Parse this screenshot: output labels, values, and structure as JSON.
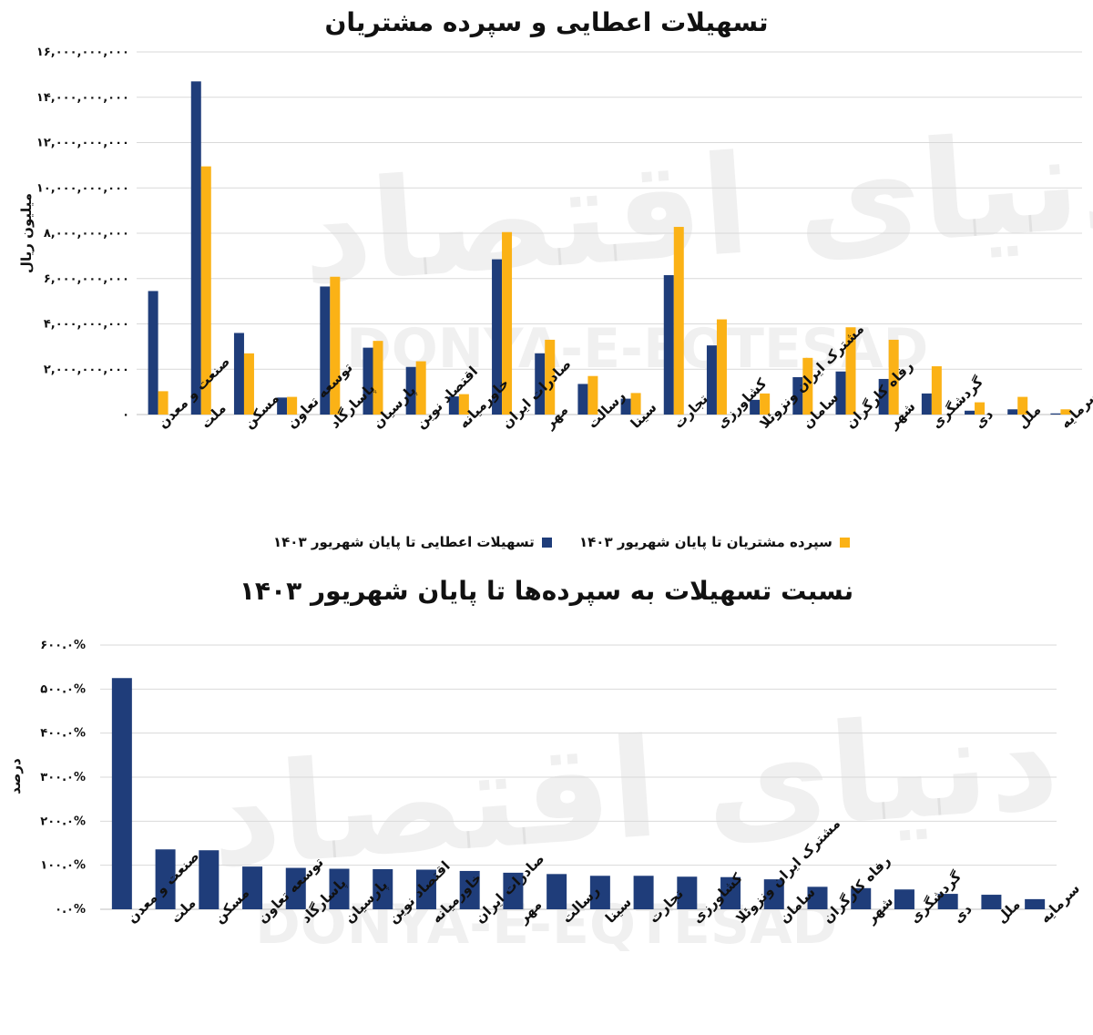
{
  "colors": {
    "blue": "#1f3d7a",
    "orange": "#fbb216",
    "grid": "#d9d9d9",
    "axis": "#111111"
  },
  "watermark": {
    "text_latin": "DONYA-E-EQTESAD",
    "text_fa": "دنیای اقتصاد"
  },
  "chart_data": [
    {
      "type": "bar",
      "title": "تسهیلات اعطایی و سپرده مشتریان",
      "ylabel": "میلیون ریال",
      "ylim": [
        0,
        16000000000
      ],
      "yticks": [
        0,
        2000000000,
        4000000000,
        6000000000,
        8000000000,
        10000000000,
        12000000000,
        14000000000,
        16000000000
      ],
      "ytick_labels": [
        "۰",
        "۲,۰۰۰,۰۰۰,۰۰۰",
        "۴,۰۰۰,۰۰۰,۰۰۰",
        "۶,۰۰۰,۰۰۰,۰۰۰",
        "۸,۰۰۰,۰۰۰,۰۰۰",
        "۱۰,۰۰۰,۰۰۰,۰۰۰",
        "۱۲,۰۰۰,۰۰۰,۰۰۰",
        "۱۴,۰۰۰,۰۰۰,۰۰۰",
        "۱۶,۰۰۰,۰۰۰,۰۰۰"
      ],
      "grid": true,
      "legend_position": "bottom",
      "categories": [
        "صنعت و معدن",
        "ملت",
        "مسکن",
        "توسعه تعاون",
        "پاسارگاد",
        "پارسیان",
        "اقتصاد نوین",
        "خاورمیانه",
        "صادرات ایران",
        "مهر",
        "رسالت",
        "سینا",
        "تجارت",
        "کشاورزی",
        "مشترک ایران ونزوئلا",
        "سامان",
        "رفاه کارگران",
        "شهر",
        "گردشگری",
        "دی",
        "ملل",
        "سرمایه"
      ],
      "series": [
        {
          "name": "تسهیلات اعطایی تا پایان شهریور ۱۴۰۳",
          "color": "#1f3d7a",
          "values": [
            5450000000,
            14700000000,
            3600000000,
            750000000,
            5650000000,
            2950000000,
            2100000000,
            800000000,
            6850000000,
            2700000000,
            1350000000,
            700000000,
            6150000000,
            3050000000,
            650000000,
            1650000000,
            1900000000,
            1570000000,
            930000000,
            170000000,
            230000000,
            50000000
          ]
        },
        {
          "name": "سپرده مشتریان تا پایان شهریور ۱۴۰۳",
          "color": "#fbb216",
          "values": [
            1030000000,
            10950000000,
            2700000000,
            780000000,
            6080000000,
            3250000000,
            2350000000,
            900000000,
            8050000000,
            3300000000,
            1700000000,
            950000000,
            8280000000,
            4200000000,
            930000000,
            2500000000,
            3850000000,
            3300000000,
            2130000000,
            540000000,
            780000000,
            230000000
          ]
        }
      ]
    },
    {
      "type": "bar",
      "title": "نسبت تسهیلات به سپرده‌ها تا پایان شهریور ۱۴۰۳",
      "ylabel": "درصد",
      "ylim": [
        0,
        600
      ],
      "yticks": [
        0,
        100,
        200,
        300,
        400,
        500,
        600
      ],
      "ytick_labels": [
        "۰.۰%",
        "۱۰۰.۰%",
        "۲۰۰.۰%",
        "۳۰۰.۰%",
        "۴۰۰.۰%",
        "۵۰۰.۰%",
        "۶۰۰.۰%"
      ],
      "grid": true,
      "categories": [
        "صنعت و معدن",
        "ملت",
        "مسکن",
        "توسعه تعاون",
        "پاسارگاد",
        "پارسیان",
        "اقتصاد نوین",
        "خاورمیانه",
        "صادرات ایران",
        "مهر",
        "رسالت",
        "سینا",
        "تجارت",
        "کشاورزی",
        "مشترک ایران ونزوئلا",
        "سامان",
        "رفاه کارگران",
        "شهر",
        "گردشگری",
        "دی",
        "ملل",
        "سرمایه"
      ],
      "series": [
        {
          "color": "#1f3d7a",
          "values": [
            525,
            136,
            134,
            97,
            94,
            92,
            91,
            90,
            87,
            83,
            80,
            76,
            76,
            74,
            73,
            68,
            51,
            48,
            45,
            35,
            33,
            23
          ]
        }
      ]
    }
  ]
}
